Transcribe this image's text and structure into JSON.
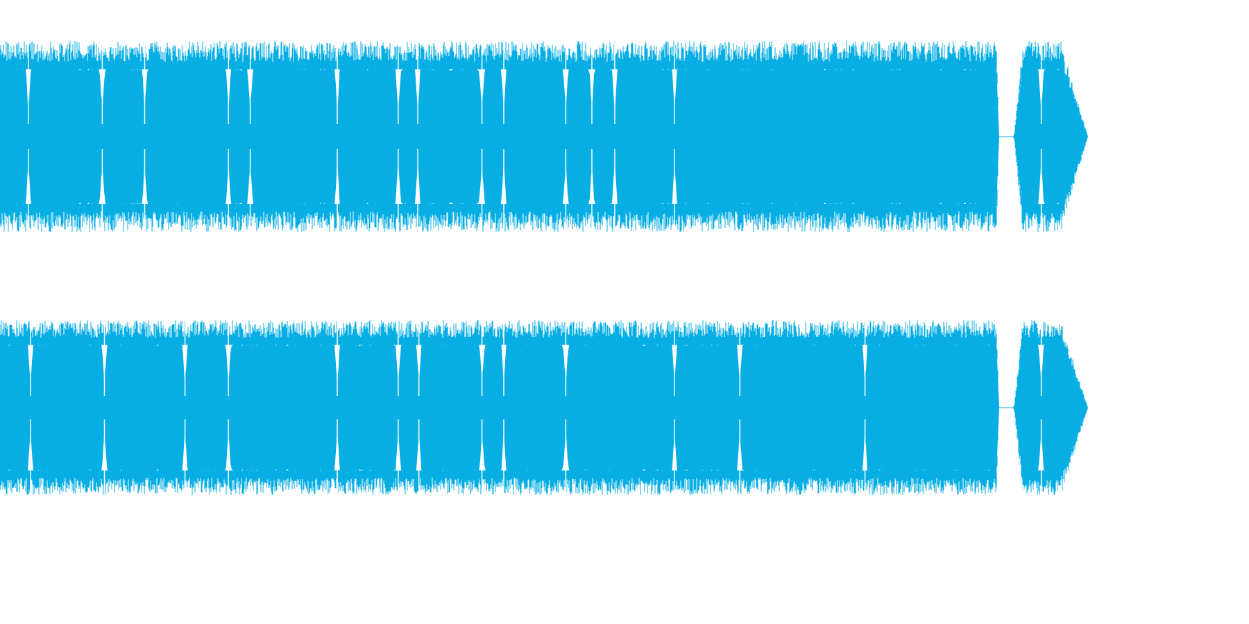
{
  "waveform": {
    "color": "#06aee4",
    "background": "#ffffff",
    "channel_count": 2,
    "channels": [
      {
        "name": "",
        "peak_level": 0.92,
        "body_level": 0.72,
        "gap_start_fraction": 0.918,
        "gap_end_fraction": 0.932,
        "tail_fade_start_fraction": 0.975,
        "end_fraction": 1.0,
        "dropouts_fraction": [
          0.026,
          0.094,
          0.133,
          0.21,
          0.23,
          0.31,
          0.366,
          0.384,
          0.443,
          0.463,
          0.52,
          0.544,
          0.565,
          0.62,
          0.93,
          0.957
        ]
      },
      {
        "name": "",
        "peak_level": 0.9,
        "body_level": 0.72,
        "gap_start_fraction": 0.918,
        "gap_end_fraction": 0.932,
        "tail_fade_start_fraction": 0.975,
        "end_fraction": 1.0,
        "dropouts_fraction": [
          0.028,
          0.096,
          0.17,
          0.21,
          0.31,
          0.366,
          0.385,
          0.443,
          0.463,
          0.52,
          0.62,
          0.68,
          0.795,
          0.957
        ]
      }
    ]
  }
}
